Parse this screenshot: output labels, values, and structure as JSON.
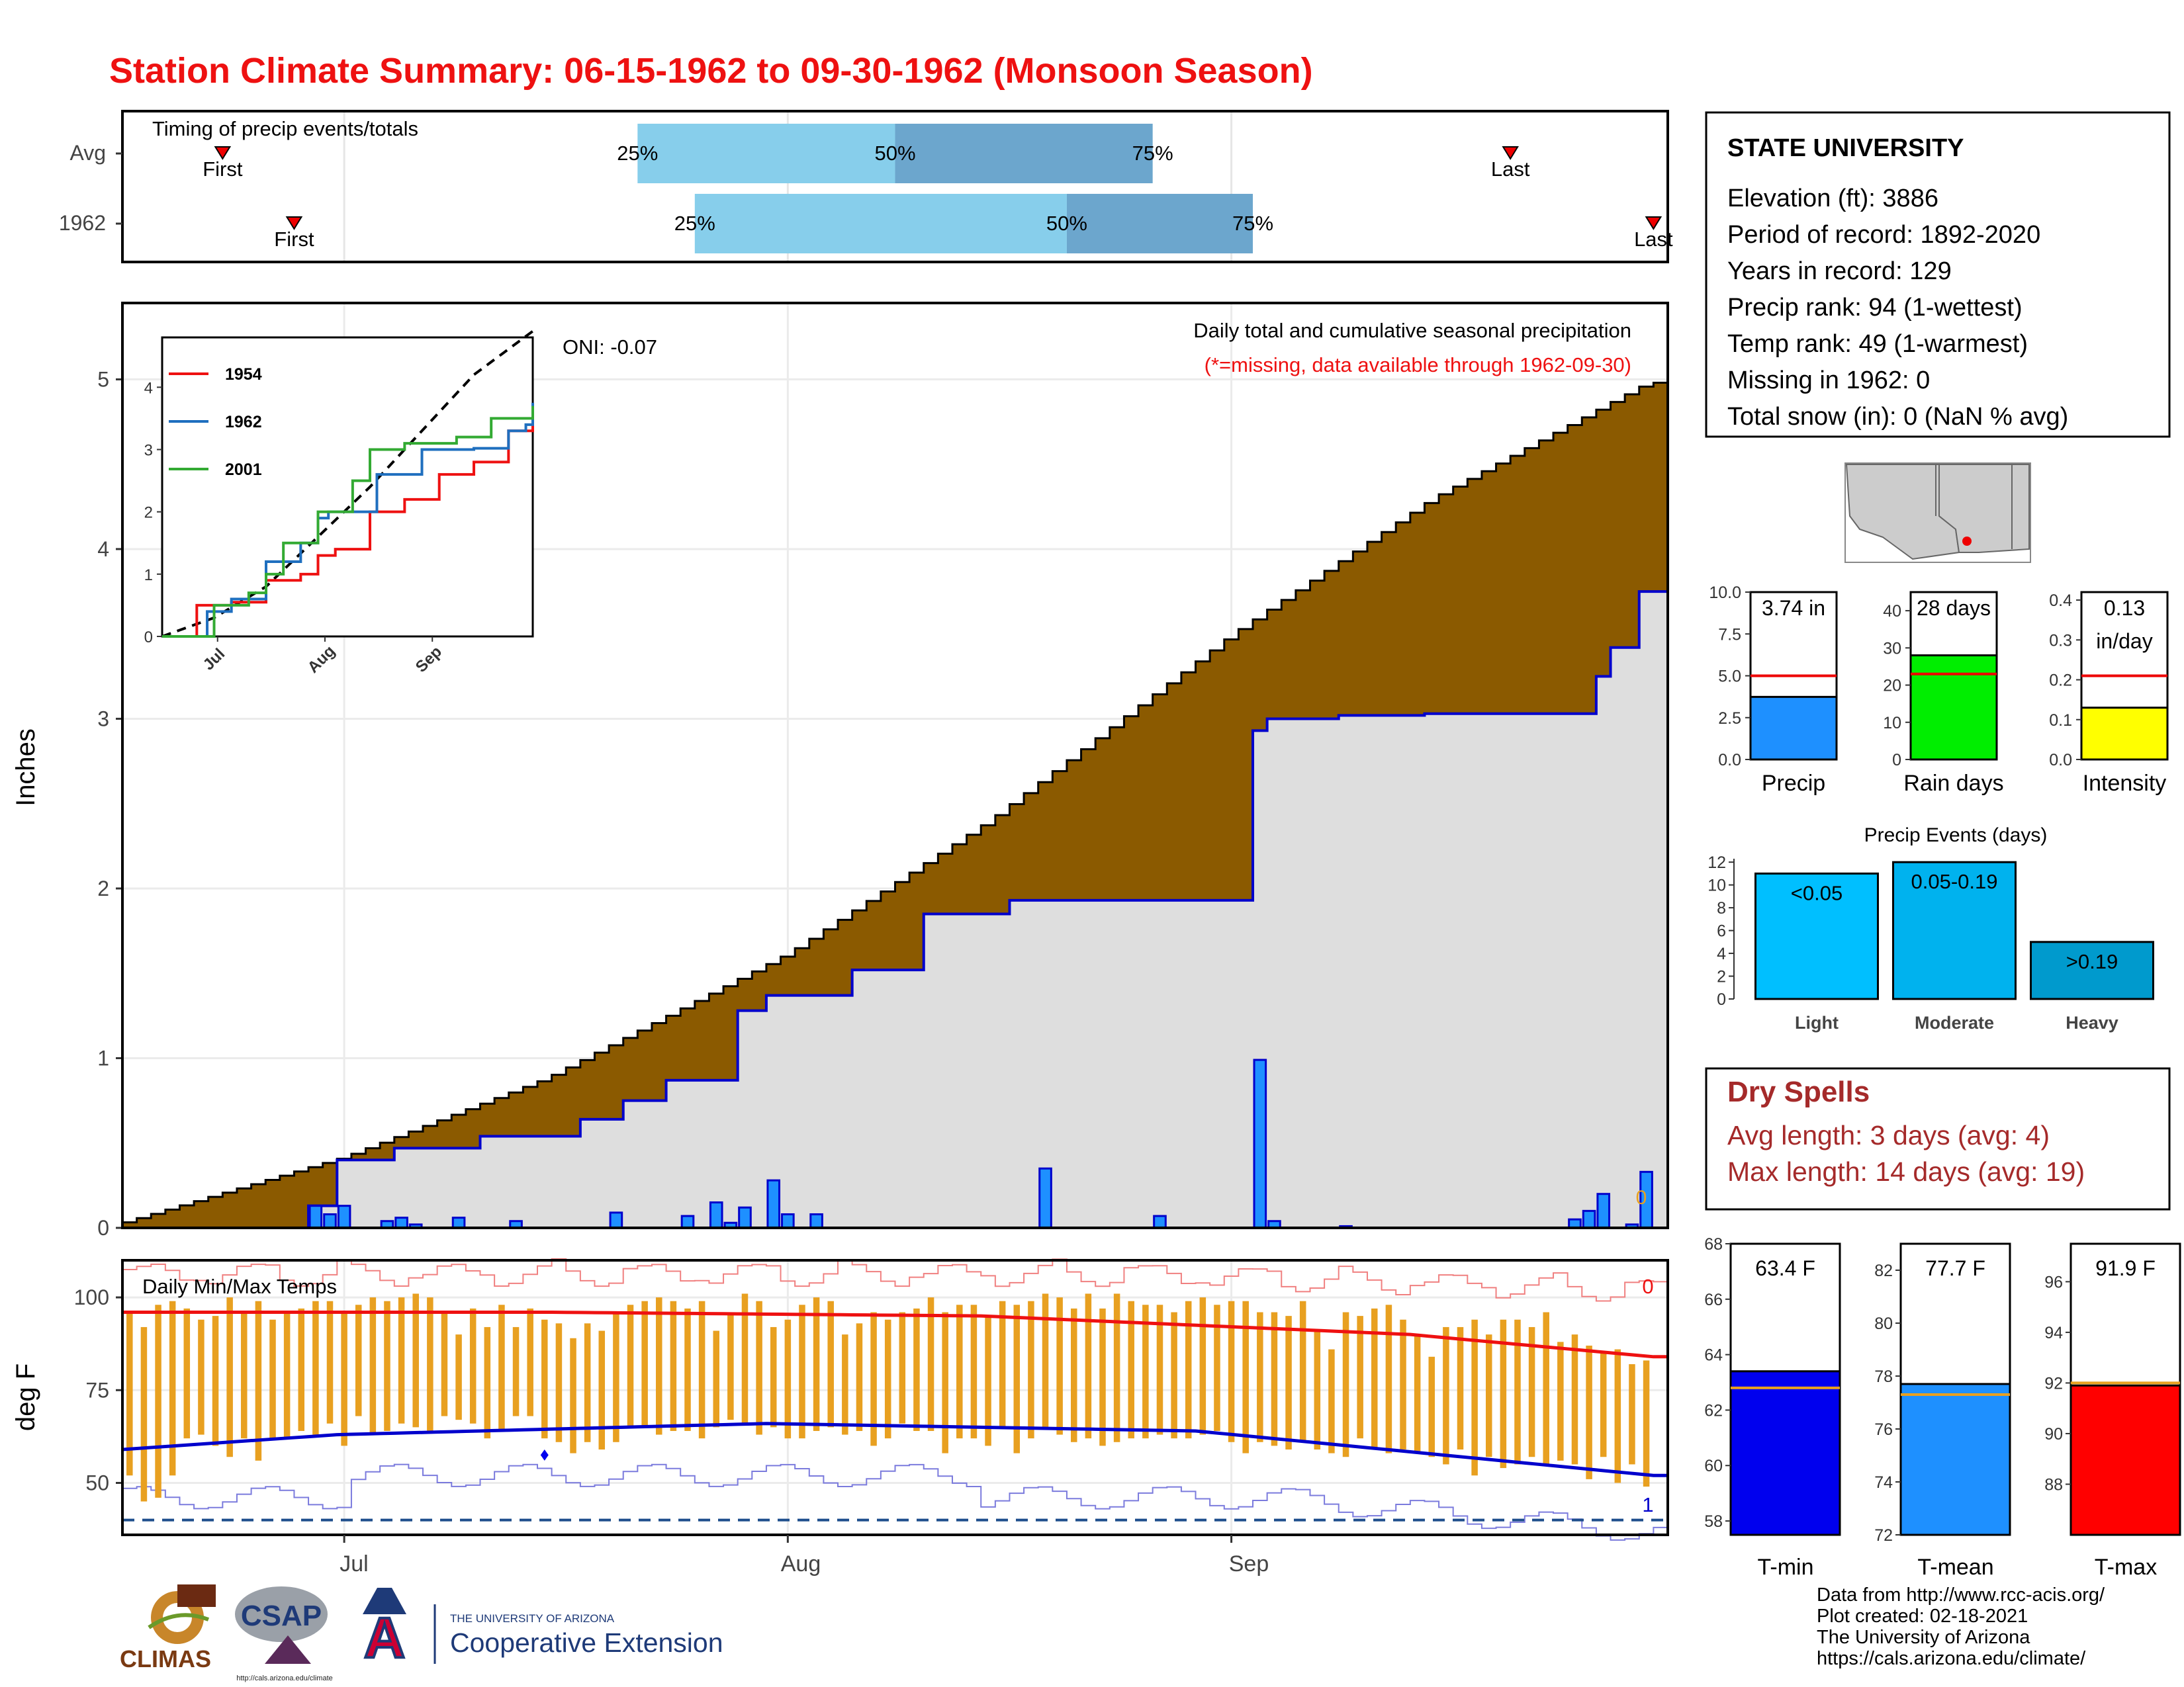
{
  "title": "Station Climate Summary: 06-15-1962 to 09-30-1962 (Monsoon Season)",
  "colors": {
    "title": "#ee1111",
    "brown": "#8b5a00",
    "light_gray": "#dedede",
    "blue_line": "#0000cc",
    "bar_blue": "#1e90ff",
    "q_light": "#87ceeb",
    "q_dark": "#6ca6cd",
    "orange": "#e8a020",
    "red": "#ee1111",
    "green": "#00ee00",
    "yellow": "#ffff00",
    "dry_red": "#a52a2a"
  },
  "timing": {
    "title": "Timing of precip events/totals",
    "rows": [
      {
        "label": "Avg",
        "first": "First",
        "last": "Last",
        "p25": "25%",
        "p50": "50%",
        "p75": "75%",
        "first_date": "1962-06-22",
        "last_date": "1962-09-20",
        "q25_date": "1962-07-21",
        "q50_date": "1962-08-08",
        "q75_date": "1962-08-26"
      },
      {
        "label": "1962",
        "first": "First",
        "last": "Last",
        "p25": "25%",
        "p50": "50%",
        "p75": "75%",
        "first_date": "1962-06-27",
        "last_date": "1962-09-30",
        "q25_date": "1962-07-25",
        "q50_date": "1962-08-20",
        "q75_date": "1962-09-02"
      }
    ]
  },
  "station": {
    "name": "STATE UNIVERSITY",
    "lines": [
      "Elevation (ft): 3886",
      "Period of record: 1892-2020",
      "Years in record: 129",
      "Precip rank: 94 (1-wettest)",
      "Temp rank: 49 (1-warmest)",
      "Missing in 1962: 0",
      "Total snow (in): 0 (NaN % avg)"
    ]
  },
  "precip_panel": {
    "ylabel": "Inches",
    "oni": "ONI: -0.07",
    "note1": "Daily total and cumulative seasonal precipitation",
    "note2": "(*=missing, data available through 1962-09-30)",
    "missing_marker": "0",
    "yticks": [
      "0",
      "1",
      "2",
      "3",
      "4",
      "5"
    ]
  },
  "inset": {
    "years": [
      "1954",
      "1962",
      "2001"
    ],
    "year_colors": [
      "#ee1111",
      "#1f6fbf",
      "#33aa33"
    ],
    "yticks": [
      "0",
      "1",
      "2",
      "3",
      "4"
    ],
    "xticks": [
      "Jul",
      "Aug",
      "Sep"
    ]
  },
  "temp_panel": {
    "ylabel": "deg F",
    "title": "Daily Min/Max Temps",
    "missing_count": "0",
    "freeze_count": "1",
    "yticks": [
      "50",
      "75",
      "100"
    ]
  },
  "xaxis": {
    "ticks": [
      "Jul",
      "Aug",
      "Sep"
    ]
  },
  "bars_precip": {
    "ticks": [
      "0.0",
      "2.5",
      "5.0",
      "7.5",
      "10.0"
    ],
    "value": 3.74,
    "avg": 5.0,
    "label": "3.74 in",
    "name": "Precip"
  },
  "bars_raindays": {
    "ticks": [
      "0",
      "10",
      "20",
      "30",
      "40"
    ],
    "value": 28,
    "avg": 23,
    "label": "28 days",
    "name": "Rain days"
  },
  "bars_intensity": {
    "ticks": [
      "0.0",
      "0.1",
      "0.2",
      "0.3",
      "0.4"
    ],
    "value": 0.13,
    "avg": 0.21,
    "label1": "0.13",
    "label2": "in/day",
    "name": "Intensity"
  },
  "events": {
    "title": "Precip Events (days)",
    "ticks": [
      "0",
      "2",
      "4",
      "6",
      "8",
      "10",
      "12"
    ],
    "bars": [
      {
        "cat": "Light",
        "label": "<0.05",
        "value": 11,
        "color": "#00bfff"
      },
      {
        "cat": "Moderate",
        "label": "0.05-0.19",
        "value": 12,
        "color": "#00b2ee"
      },
      {
        "cat": "Heavy",
        "label": ">0.19",
        "value": 5,
        "color": "#009acd"
      }
    ]
  },
  "dry_spells": {
    "title": "Dry Spells",
    "avg": "Avg length: 3 days (avg: 4)",
    "max": "Max length: 14 days (avg: 19)"
  },
  "temp_bars": [
    {
      "name": "T-min",
      "label": "63.4 F",
      "value": 63.4,
      "avg": 62.8,
      "ymin": 57.5,
      "ymax": 68,
      "ticks": [
        "58",
        "60",
        "62",
        "64",
        "66",
        "68"
      ],
      "tick_values": [
        58,
        60,
        62,
        64,
        66,
        68
      ],
      "color": "#0000ee"
    },
    {
      "name": "T-mean",
      "label": "77.7 F",
      "value": 77.7,
      "avg": 77.3,
      "ymin": 72,
      "ymax": 83,
      "ticks": [
        "72",
        "74",
        "76",
        "78",
        "80",
        "82"
      ],
      "tick_values": [
        72,
        74,
        76,
        78,
        80,
        82
      ],
      "color": "#1e90ff"
    },
    {
      "name": "T-max",
      "label": "91.9 F",
      "value": 91.9,
      "avg": 92.0,
      "ymin": 86,
      "ymax": 97.5,
      "ticks": [
        "88",
        "90",
        "92",
        "94",
        "96"
      ],
      "tick_values": [
        88,
        90,
        92,
        94,
        96
      ],
      "color": "#ff0000"
    }
  ],
  "credits": [
    "Data from http://www.rcc-acis.org/",
    "Plot created: 02-18-2021",
    "The University of Arizona",
    "https://cals.arizona.edu/climate/"
  ],
  "logos": {
    "climas": "CLIMAS",
    "csap": "CSAP",
    "csap_url": "http://cals.arizona.edu/climate",
    "ua_line1": "THE UNIVERSITY OF ARIZONA",
    "ua_line2": "Cooperative Extension"
  },
  "chart_data": [
    {
      "type": "area",
      "title": "Daily total and cumulative seasonal precipitation",
      "xlabel": "",
      "ylabel": "Inches",
      "ylim": [
        0,
        5.45
      ],
      "x_start": "1962-06-15",
      "x_end": "1962-09-30",
      "series": [
        {
          "name": "avg_cumulative_x",
          "x": [
            "06-15",
            "07-01",
            "07-15",
            "08-01",
            "08-15",
            "09-01",
            "09-15",
            "09-30"
          ],
          "values": [
            0.02,
            0.42,
            0.88,
            1.62,
            2.4,
            3.5,
            4.3,
            4.98
          ]
        },
        {
          "name": "1962 cumulative",
          "x": [
            "06-15",
            "06-28",
            "06-30",
            "07-04",
            "07-10",
            "07-17",
            "07-20",
            "07-23",
            "07-28",
            "07-30",
            "08-05",
            "08-10",
            "08-15",
            "08-16",
            "09-02",
            "09-03",
            "09-08",
            "09-14",
            "09-26",
            "09-27",
            "09-29",
            "09-30"
          ],
          "values": [
            0,
            0.13,
            0.4,
            0.47,
            0.54,
            0.64,
            0.75,
            0.87,
            1.28,
            1.37,
            1.52,
            1.85,
            1.85,
            1.93,
            2.93,
            3.0,
            3.02,
            3.03,
            3.25,
            3.42,
            3.75,
            3.75
          ]
        },
        {
          "name": "daily precip",
          "x": [
            "06-28",
            "06-29",
            "06-30",
            "07-03",
            "07-04",
            "07-05",
            "07-08",
            "07-12",
            "07-19",
            "07-24",
            "07-26",
            "07-27",
            "07-28",
            "07-30",
            "07-31",
            "08-02",
            "08-18",
            "08-26",
            "09-02",
            "09-03",
            "09-08",
            "09-24",
            "09-25",
            "09-26",
            "09-28",
            "09-29"
          ],
          "values": [
            0.13,
            0.08,
            0.13,
            0.04,
            0.06,
            0.02,
            0.06,
            0.04,
            0.09,
            0.07,
            0.15,
            0.03,
            0.12,
            0.28,
            0.08,
            0.08,
            0.35,
            0.07,
            0.99,
            0.04,
            0.01,
            0.05,
            0.1,
            0.2,
            0.02,
            0.33
          ]
        }
      ]
    },
    {
      "type": "line",
      "title": "",
      "xlabel": "",
      "ylabel": "",
      "ylim": [
        0,
        4.8
      ],
      "categories": [
        "Jul",
        "Aug",
        "Sep"
      ],
      "series": [
        {
          "name": "avg_cum",
          "x": [
            0,
            15,
            30,
            45,
            60,
            75,
            90,
            107
          ],
          "values": [
            0,
            0.3,
            0.8,
            1.6,
            2.4,
            3.3,
            4.2,
            4.9
          ]
        },
        {
          "name": "1954",
          "x": [
            0,
            10,
            20,
            30,
            40,
            45,
            50,
            60,
            70,
            80,
            90,
            100,
            107
          ],
          "values": [
            0,
            0.5,
            0.55,
            0.9,
            1,
            1.3,
            1.4,
            2,
            2.2,
            2.6,
            2.8,
            3.3,
            3.7
          ]
        },
        {
          "name": "1962",
          "x": [
            0,
            13,
            20,
            30,
            40,
            45,
            48,
            62,
            75,
            90,
            100,
            105,
            107
          ],
          "values": [
            0,
            0.4,
            0.6,
            1.2,
            1.5,
            1.9,
            2.0,
            2.6,
            3.0,
            3.02,
            3.3,
            3.4,
            3.75
          ]
        },
        {
          "name": "2001",
          "x": [
            0,
            15,
            25,
            30,
            35,
            45,
            55,
            60,
            70,
            85,
            95,
            107
          ],
          "values": [
            0,
            0.5,
            0.7,
            1.0,
            1.5,
            2.0,
            2.5,
            3.0,
            3.1,
            3.2,
            3.5,
            3.7
          ]
        }
      ]
    },
    {
      "type": "bar",
      "title": "Daily Min/Max Temps",
      "ylabel": "deg F",
      "ylim": [
        36,
        110
      ],
      "x_start": "1962-06-15",
      "series": [
        {
          "name": "Tmax",
          "values": [
            96,
            92,
            98,
            99,
            97,
            94,
            95,
            100,
            96,
            99,
            94,
            96,
            97,
            99,
            99,
            96,
            98,
            100,
            99,
            100,
            101,
            100,
            96,
            90,
            97,
            92,
            98,
            92,
            97,
            94,
            93,
            89,
            93,
            91,
            96,
            98,
            99,
            100,
            99,
            97,
            99,
            91,
            96,
            101,
            99,
            92,
            94,
            98,
            100,
            99,
            90,
            93,
            96,
            94,
            96,
            97,
            100,
            96,
            98,
            98,
            95,
            99,
            98,
            99,
            101,
            100,
            97,
            101,
            97,
            101,
            99,
            98,
            98,
            96,
            99,
            100,
            98,
            99,
            99,
            96,
            96,
            95,
            99,
            91,
            86,
            96,
            95,
            97,
            98,
            94,
            90,
            84,
            92,
            92,
            94,
            90,
            94,
            94,
            92,
            96,
            88,
            90,
            87,
            85,
            86,
            82,
            83
          ]
        },
        {
          "name": "Tmin",
          "values": [
            52,
            45,
            46,
            52,
            62,
            63,
            60,
            57,
            62,
            56,
            62,
            62,
            64,
            63,
            66,
            60,
            68,
            63,
            64,
            66,
            65,
            64,
            68,
            67,
            66,
            62,
            64,
            68,
            68,
            62,
            61,
            58,
            61,
            59,
            61,
            65,
            65,
            63,
            64,
            64,
            62,
            65,
            67,
            66,
            63,
            65,
            62,
            62,
            64,
            65,
            63,
            64,
            60,
            62,
            66,
            64,
            64,
            58,
            62,
            62,
            60,
            65,
            58,
            62,
            65,
            63,
            61,
            62,
            60,
            61,
            62,
            62,
            63,
            62,
            62,
            63,
            64,
            61,
            58,
            61,
            60,
            59,
            61,
            59,
            58,
            57,
            62,
            59,
            58,
            59,
            58,
            57,
            55,
            59,
            52,
            57,
            54,
            55,
            57,
            55,
            56,
            55,
            51,
            57,
            50,
            55,
            49
          ]
        },
        {
          "name": "avg_max_smooth",
          "x": [
            0,
            30,
            60,
            90,
            107
          ],
          "values": [
            96,
            96,
            95,
            90,
            84
          ]
        },
        {
          "name": "avg_min_smooth",
          "x": [
            0,
            15,
            45,
            75,
            107
          ],
          "values": [
            59,
            63,
            66,
            64,
            52
          ]
        }
      ]
    },
    {
      "type": "bar",
      "name": "Precip",
      "categories": [
        "Precip"
      ],
      "values": [
        3.74
      ],
      "ylim": [
        0,
        10
      ],
      "avg": 5.0
    },
    {
      "type": "bar",
      "name": "Rain days",
      "categories": [
        "Rain days"
      ],
      "values": [
        28
      ],
      "ylim": [
        0,
        45
      ],
      "avg": 23
    },
    {
      "type": "bar",
      "name": "Intensity",
      "categories": [
        "Intensity"
      ],
      "values": [
        0.13
      ],
      "ylim": [
        0,
        0.42
      ],
      "avg": 0.21
    },
    {
      "type": "bar",
      "title": "Precip Events (days)",
      "categories": [
        "Light",
        "Moderate",
        "Heavy"
      ],
      "values": [
        11,
        12,
        5
      ],
      "ylim": [
        0,
        12.3
      ]
    },
    {
      "type": "bar",
      "categories": [
        "T-min",
        "T-mean",
        "T-max"
      ],
      "values": [
        63.4,
        77.7,
        91.9
      ],
      "avg": [
        62.8,
        77.3,
        92.0
      ]
    }
  ]
}
